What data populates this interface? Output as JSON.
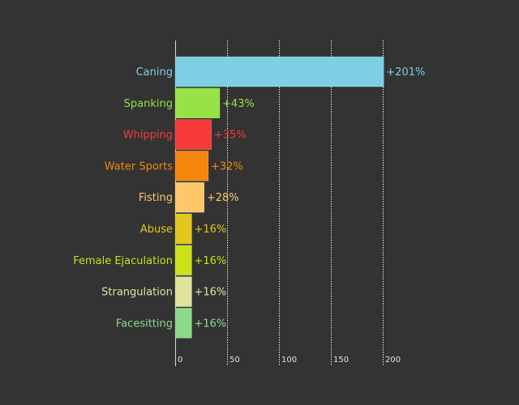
{
  "chart_data": {
    "type": "bar",
    "orientation": "horizontal",
    "categories": [
      "Caning",
      "Spanking",
      "Whipping",
      "Water Sports",
      "Fisting",
      "Abuse",
      "Female Ejaculation",
      "Strangulation",
      "Facesitting"
    ],
    "values": [
      201,
      43,
      35,
      32,
      28,
      16,
      16,
      16,
      16
    ],
    "value_labels": [
      "+201%",
      "+43%",
      "+35%",
      "+32%",
      "+28%",
      "+16%",
      "+16%",
      "+16%",
      "+16%"
    ],
    "colors": [
      "#7ecfe3",
      "#97e245",
      "#f53a38",
      "#f5860e",
      "#fdc76a",
      "#e1c71b",
      "#c9e21a",
      "#dfe49a",
      "#8cd98a"
    ],
    "label_colors": [
      "#7ecfe3",
      "#97e245",
      "#f53a38",
      "#f5860e",
      "#fdc76a",
      "#e1c71b",
      "#c9e21a",
      "#dfe49a",
      "#8cd98a"
    ],
    "x_ticks": [
      "0",
      "50",
      "100",
      "150",
      "200"
    ],
    "xlim": [
      0,
      200
    ],
    "grid": "vertical dotted",
    "title": "",
    "xlabel": "",
    "ylabel": ""
  }
}
